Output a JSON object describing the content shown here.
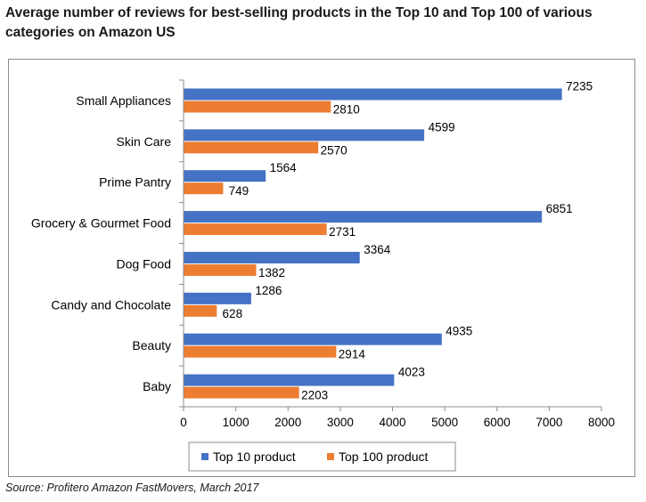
{
  "title": "Average number of reviews for best-selling products in the Top 10 and Top 100 of various categories on Amazon US",
  "source": "Source: Profitero Amazon FastMovers, March 2017",
  "chart_data": {
    "type": "bar",
    "orientation": "horizontal",
    "categories": [
      "Small Appliances",
      "Skin Care",
      "Prime Pantry",
      "Grocery & Gourmet Food",
      "Dog Food",
      "Candy and Chocolate",
      "Beauty",
      "Baby"
    ],
    "series": [
      {
        "name": "Top 10 product",
        "color": "#4472c4",
        "values": [
          7235,
          4599,
          1564,
          6851,
          3364,
          1286,
          4935,
          4023
        ]
      },
      {
        "name": "Top 100 product",
        "color": "#ed7d31",
        "values": [
          2810,
          2570,
          749,
          2731,
          1382,
          628,
          2914,
          2203
        ]
      }
    ],
    "xlim": [
      0,
      8000
    ],
    "xticks": [
      0,
      1000,
      2000,
      3000,
      4000,
      5000,
      6000,
      7000,
      8000
    ],
    "grid": false,
    "legend_position": "bottom",
    "data_labels": true
  }
}
